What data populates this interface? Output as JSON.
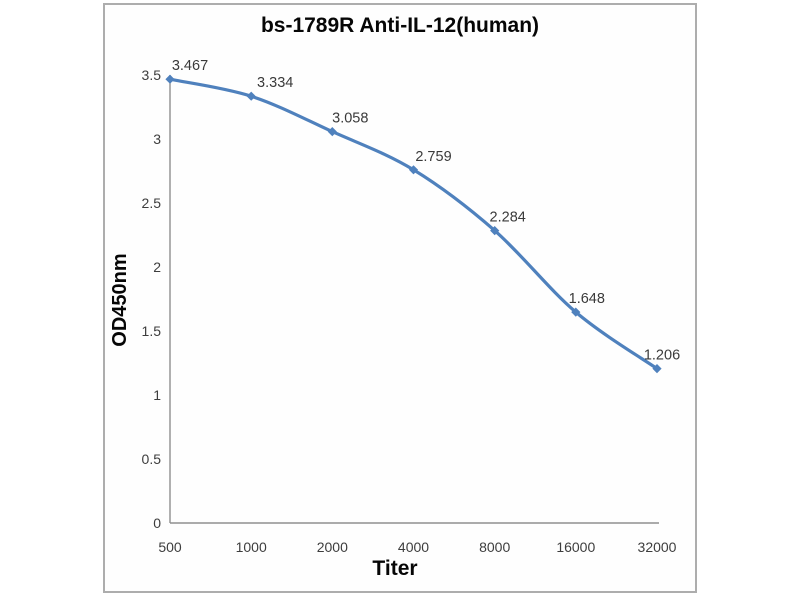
{
  "page": {
    "background_color": "#ffffff",
    "frame_border_color": "#adadad",
    "frame_background_color": "#fefefe"
  },
  "chart_data": {
    "type": "line",
    "title": "bs-1789R Anti-IL-12(human)",
    "xlabel": "Titer",
    "ylabel": "OD450nm",
    "categories": [
      "500",
      "1000",
      "2000",
      "4000",
      "8000",
      "16000",
      "32000"
    ],
    "series": [
      {
        "name": "OD450nm",
        "values": [
          3.467,
          3.334,
          3.058,
          2.759,
          2.284,
          1.648,
          1.206
        ],
        "data_labels": [
          "3.467",
          "3.334",
          "3.058",
          "2.759",
          "2.284",
          "1.648",
          "1.206"
        ],
        "color": "#4F81BD",
        "marker": "diamond",
        "smooth": true
      }
    ],
    "ylim": [
      0,
      3.5
    ],
    "yticks": [
      "0",
      "0.5",
      "1",
      "1.5",
      "2",
      "2.5",
      "3",
      "3.5"
    ],
    "grid": false,
    "legend": "none",
    "axis_color": "#8f8f8f",
    "tick_label_color": "#3d3d3d",
    "data_label_color": "#3a3a3a"
  }
}
